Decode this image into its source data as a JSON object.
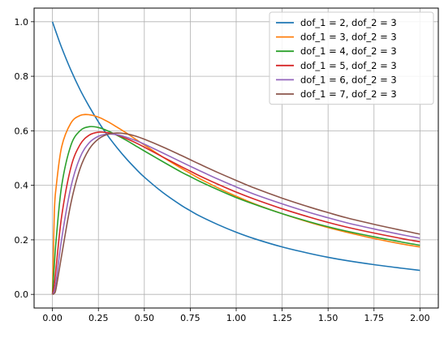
{
  "chart_data": {
    "type": "line",
    "title": "",
    "xlabel": "",
    "ylabel": "",
    "xlim": [
      -0.1,
      2.1
    ],
    "ylim": [
      -0.05,
      1.05
    ],
    "x_ticks": [
      0.0,
      0.25,
      0.5,
      0.75,
      1.0,
      1.25,
      1.5,
      1.75,
      2.0
    ],
    "x_tick_labels": [
      "0.00",
      "0.25",
      "0.50",
      "0.75",
      "1.00",
      "1.25",
      "1.50",
      "1.75",
      "2.00"
    ],
    "y_ticks": [
      0.0,
      0.2,
      0.4,
      0.6,
      0.8,
      1.0
    ],
    "y_tick_labels": [
      "0.0",
      "0.2",
      "0.4",
      "0.6",
      "0.8",
      "1.0"
    ],
    "grid": true,
    "legend_position": "top-right",
    "x": [
      0.0,
      0.01,
      0.02,
      0.05,
      0.1,
      0.15,
      0.2,
      0.25,
      0.3,
      0.35,
      0.4,
      0.45,
      0.5,
      0.6,
      0.7,
      0.75,
      0.8,
      0.9,
      1.0,
      1.1,
      1.25,
      1.4,
      1.5,
      1.6,
      1.75,
      1.9,
      2.0
    ],
    "series": [
      {
        "name": "dof_1 = 2, dof_2 = 3",
        "color": "#1f77b4",
        "values": [
          1.0,
          0.98,
          0.961,
          0.905,
          0.823,
          0.751,
          0.689,
          0.633,
          0.583,
          0.539,
          0.499,
          0.463,
          0.43,
          0.374,
          0.327,
          0.307,
          0.288,
          0.256,
          0.228,
          0.204,
          0.174,
          0.15,
          0.136,
          0.124,
          0.109,
          0.096,
          0.088
        ]
      },
      {
        "name": "dof_1 = 3, dof_2 = 3",
        "color": "#ff7f0e",
        "values": [
          0.0,
          0.297,
          0.393,
          0.541,
          0.628,
          0.656,
          0.659,
          0.65,
          0.634,
          0.614,
          0.593,
          0.57,
          0.548,
          0.504,
          0.463,
          0.444,
          0.425,
          0.391,
          0.36,
          0.332,
          0.296,
          0.264,
          0.245,
          0.228,
          0.205,
          0.185,
          0.174
        ]
      },
      {
        "name": "dof_1 = 4, dof_2 = 3",
        "color": "#2ca02c",
        "values": [
          0.0,
          0.106,
          0.2,
          0.398,
          0.546,
          0.6,
          0.615,
          0.612,
          0.6,
          0.584,
          0.566,
          0.546,
          0.526,
          0.487,
          0.449,
          0.432,
          0.415,
          0.384,
          0.355,
          0.33,
          0.296,
          0.266,
          0.248,
          0.232,
          0.211,
          0.192,
          0.18
        ]
      },
      {
        "name": "dof_1 = 5, dof_2 = 3",
        "color": "#d62728",
        "values": [
          0.0,
          0.036,
          0.099,
          0.286,
          0.465,
          0.549,
          0.584,
          0.595,
          0.593,
          0.585,
          0.572,
          0.557,
          0.54,
          0.504,
          0.469,
          0.452,
          0.435,
          0.404,
          0.375,
          0.349,
          0.314,
          0.283,
          0.264,
          0.247,
          0.225,
          0.205,
          0.193
        ]
      },
      {
        "name": "dof_1 = 6, dof_2 = 3",
        "color": "#9467bd",
        "values": [
          0.0,
          0.012,
          0.048,
          0.203,
          0.393,
          0.502,
          0.556,
          0.58,
          0.588,
          0.586,
          0.577,
          0.565,
          0.551,
          0.519,
          0.486,
          0.47,
          0.454,
          0.423,
          0.394,
          0.367,
          0.332,
          0.3,
          0.281,
          0.263,
          0.24,
          0.219,
          0.206
        ]
      },
      {
        "name": "dof_1 = 7, dof_2 = 3",
        "color": "#8c564b",
        "values": [
          0.0,
          0.004,
          0.023,
          0.143,
          0.333,
          0.461,
          0.533,
          0.57,
          0.587,
          0.592,
          0.589,
          0.581,
          0.569,
          0.541,
          0.51,
          0.494,
          0.478,
          0.447,
          0.418,
          0.39,
          0.353,
          0.32,
          0.3,
          0.281,
          0.257,
          0.235,
          0.221
        ]
      }
    ]
  }
}
